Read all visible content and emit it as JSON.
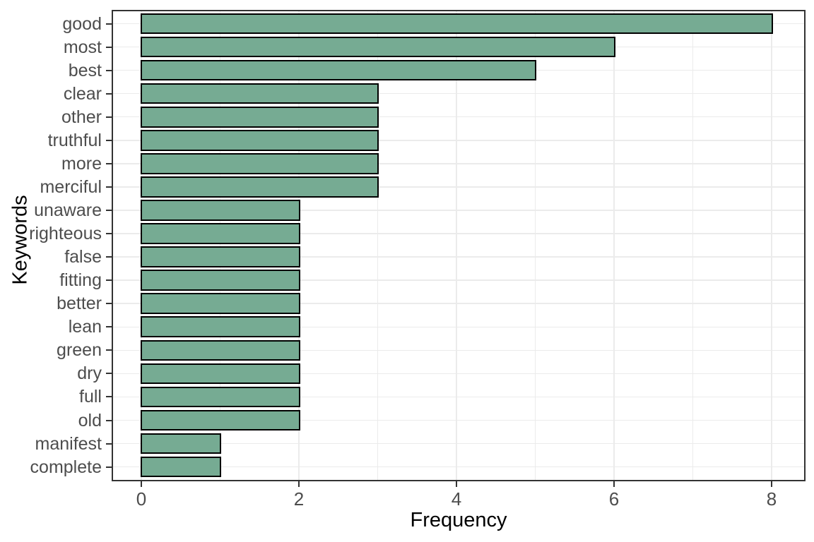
{
  "chart_data": {
    "type": "bar",
    "orientation": "horizontal",
    "title": "",
    "xlabel": "Frequency",
    "ylabel": "Keywords",
    "categories": [
      "good",
      "most",
      "best",
      "clear",
      "other",
      "truthful",
      "more",
      "merciful",
      "unaware",
      "righteous",
      "false",
      "fitting",
      "better",
      "lean",
      "green",
      "dry",
      "full",
      "old",
      "manifest",
      "complete"
    ],
    "values": [
      8,
      6,
      5,
      3,
      3,
      3,
      3,
      3,
      2,
      2,
      2,
      2,
      2,
      2,
      2,
      2,
      2,
      2,
      1,
      1
    ],
    "x_ticks": [
      0,
      2,
      4,
      6,
      8
    ],
    "x_minor_ticks": [
      1,
      3,
      5,
      7
    ],
    "xlim": [
      -0.4,
      8.4
    ],
    "grid": "major-and-minor-vertical, major-horizontal",
    "legend": "none",
    "colors": {
      "bar_fill": "#76ab93",
      "bar_border": "#000000",
      "panel_border": "#333333",
      "gridline": "#ebebeb",
      "tick_mark": "#333333",
      "tick_label": "#4d4d4d",
      "axis_title": "#000000",
      "background": "#ffffff"
    }
  }
}
